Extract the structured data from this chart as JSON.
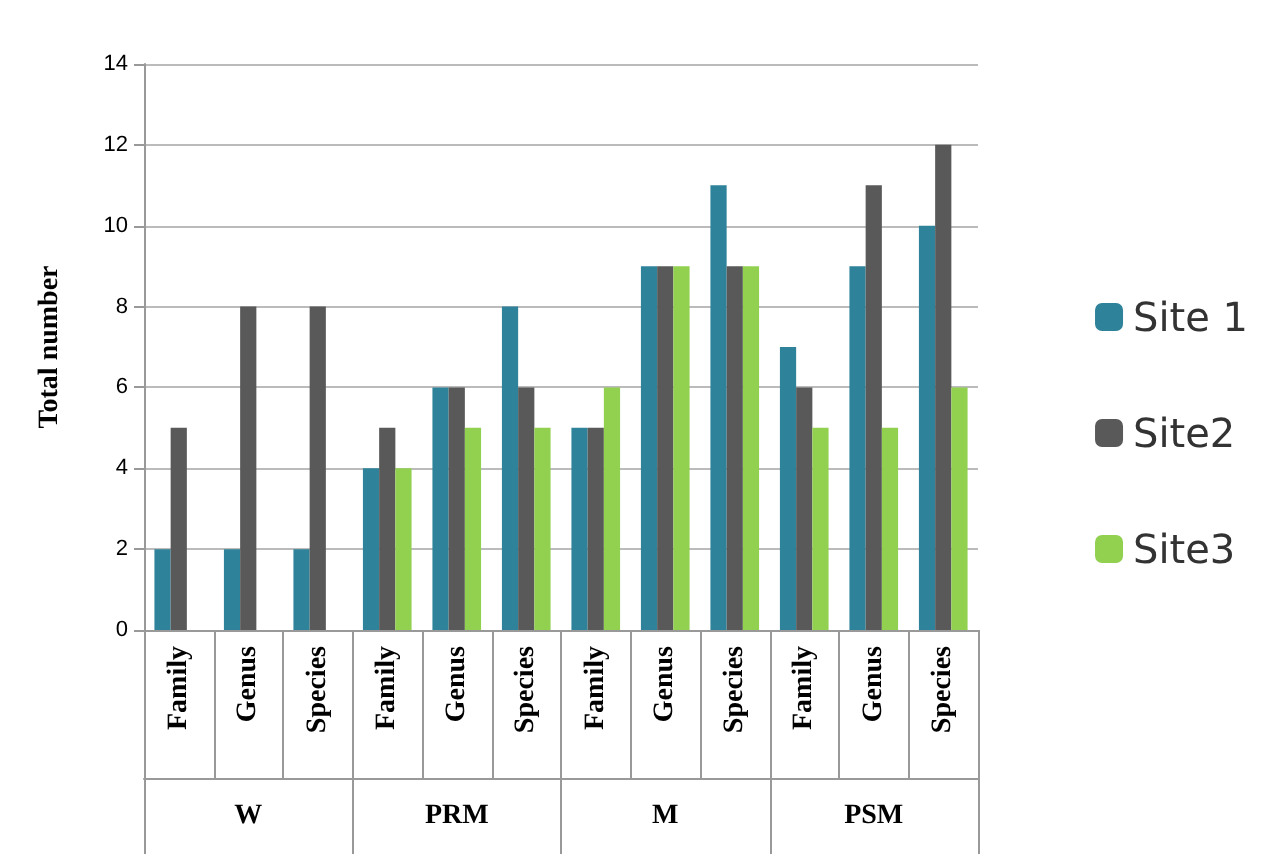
{
  "chart_data": {
    "type": "bar",
    "ylabel": "Total number",
    "categories": [
      "Family",
      "Genus",
      "Species",
      "Family",
      "Genus",
      "Species",
      "Family",
      "Genus",
      "Species",
      "Family",
      "Genus",
      "Species"
    ],
    "annotations": [
      "W",
      "PRM",
      "M",
      "PSM"
    ],
    "series": [
      {
        "name": "Site 1",
        "color": "#2e8299",
        "values": [
          2,
          2,
          2,
          4,
          6,
          8,
          5,
          9,
          11,
          7,
          9,
          10
        ]
      },
      {
        "name": "Site2",
        "color": "#595959",
        "values": [
          5,
          8,
          8,
          5,
          6,
          6,
          5,
          9,
          9,
          6,
          11,
          12
        ]
      },
      {
        "name": "Site3",
        "color": "#92d050",
        "values": [
          null,
          null,
          null,
          4,
          5,
          5,
          6,
          9,
          9,
          5,
          5,
          6
        ]
      }
    ],
    "ylim": [
      0,
      14
    ],
    "yticks": [
      0,
      2,
      4,
      6,
      8,
      10,
      12,
      14
    ],
    "grid": "y",
    "legend": "right"
  }
}
